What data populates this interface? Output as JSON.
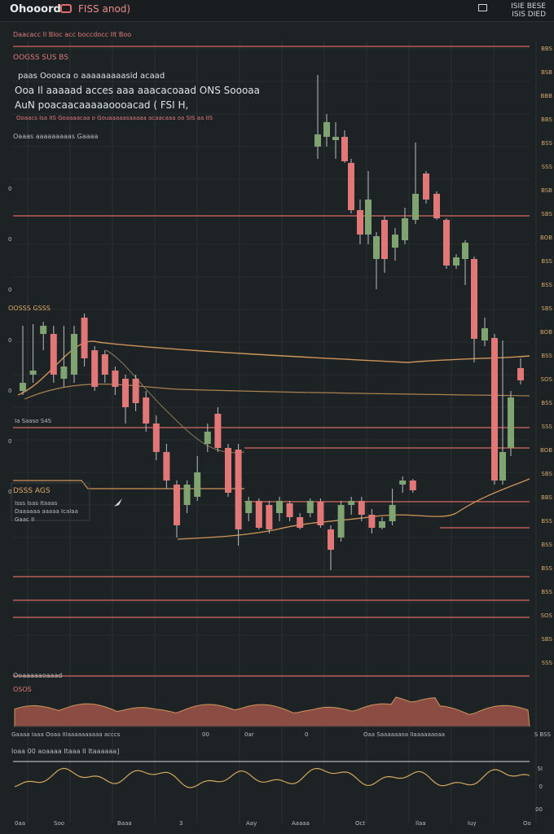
{
  "header": {
    "brand": "Ohooord",
    "pair": "FISS anod)",
    "right_line1": "ISIE BESE",
    "right_line2": "ISIS DIED"
  },
  "toolbar_text": "Daacacc  Il Bloc acc boccdocc Ilt Boo",
  "panel_title": "OOGSS SUS BS",
  "info": {
    "line1": "paas  Oooaca  o aaaaaaaaasid  acaad",
    "line2": "Ooa Il  aaaaad  acces  aaa aaacacoaad  ONS Soooaa",
    "line3": "AuN poacaacaaaaaoooacad ( FSI H,",
    "line4": "Ooaacs Isa IIS   Goaaaacaa o   Gouaaaaasaaaaa   acaacaaa  oa  SIS aa  IIS",
    "line5": "Oaaas aaaaaaaaas  Gaaaa"
  },
  "labels": {
    "ema_label": "OOSSS GSSS",
    "ema_sub": "Ia Saaso  S4S",
    "box_title": "DSSS AGS",
    "box_sub1": "Isss Isas  Itaaas",
    "box_sub2": "Daaaaaa  aaaaa IcaIaa",
    "box_sub3": "Gaac  II"
  },
  "y_axis": [
    "BBS",
    "BSB",
    "BBB",
    "BBS",
    "BSS",
    "SSS",
    "BSB",
    "SBS",
    "BOB",
    "BSS",
    "BSS",
    "SBS",
    "BOB",
    "BSS",
    "SOS",
    "BSS",
    "SSS",
    "BOB",
    "SBS",
    "BBS",
    "BSS",
    "BSS",
    "BSS",
    "BSS",
    "SOS",
    "SBS",
    "SSS"
  ],
  "left_axis": [
    "0",
    "0",
    "0",
    "0",
    "0",
    "0",
    "0"
  ],
  "volume_panel": {
    "title": "Ooaaaaaoaaad",
    "label": "OSOS",
    "axis": [
      "Gaaaa Iaaa  Ooaa  IIIaaaaaaaaaa acccs",
      "00",
      "0ar",
      "0",
      "Oaa Saaaaaaoa  IIaaaaaaoaa"
    ],
    "right": "S BSS"
  },
  "osc_panel": {
    "title": "Ioaa 00  aoaaaa Itaaa II Itaaaaaa]",
    "right_top": "SI",
    "right_mid": "0",
    "right_bot": "00"
  },
  "x_axis": [
    "0aa",
    "Soo",
    "Baaa",
    "3",
    "Aay",
    "Aaaaa",
    "Oct",
    "Ilaa",
    "Iuy",
    "Oo"
  ],
  "colors": {
    "up": "#7fa472",
    "down": "#e27777",
    "ema": "#d0955a",
    "level": "#d96a5f",
    "background": "#1d2224"
  },
  "chart_data": {
    "type": "candlestick",
    "ohlc": [
      [
        480,
        470,
        400,
        485,
        "up"
      ],
      [
        460,
        455,
        398,
        470,
        "up"
      ],
      [
        410,
        400,
        395,
        430,
        "up"
      ],
      [
        410,
        460,
        400,
        470,
        "down"
      ],
      [
        465,
        450,
        400,
        475,
        "up"
      ],
      [
        460,
        410,
        400,
        470,
        "up"
      ],
      [
        390,
        440,
        385,
        450,
        "down"
      ],
      [
        430,
        475,
        425,
        480,
        "down"
      ],
      [
        435,
        460,
        430,
        470,
        "down"
      ],
      [
        455,
        475,
        450,
        485,
        "down"
      ],
      [
        465,
        500,
        460,
        520,
        "down"
      ],
      [
        465,
        495,
        460,
        505,
        "down"
      ],
      [
        488,
        520,
        480,
        530,
        "down"
      ],
      [
        520,
        555,
        510,
        565,
        "down"
      ],
      [
        555,
        590,
        545,
        600,
        "down"
      ],
      [
        595,
        645,
        590,
        660,
        "down"
      ],
      [
        620,
        595,
        590,
        630,
        "up"
      ],
      [
        610,
        580,
        560,
        615,
        "up"
      ],
      [
        545,
        530,
        520,
        555,
        "up"
      ],
      [
        508,
        550,
        500,
        555,
        "down"
      ],
      [
        550,
        605,
        545,
        610,
        "down"
      ],
      [
        552,
        650,
        545,
        670,
        "down"
      ],
      [
        630,
        615,
        610,
        640,
        "up"
      ],
      [
        615,
        648,
        612,
        650,
        "down"
      ],
      [
        620,
        650,
        615,
        655,
        "down"
      ],
      [
        630,
        615,
        610,
        640,
        "up"
      ],
      [
        618,
        635,
        615,
        640,
        "down"
      ],
      [
        635,
        648,
        630,
        650,
        "down"
      ],
      [
        630,
        615,
        612,
        635,
        "up"
      ],
      [
        616,
        645,
        612,
        648,
        "down"
      ],
      [
        650,
        675,
        645,
        700,
        "down"
      ],
      [
        660,
        620,
        615,
        665,
        "up"
      ],
      [
        620,
        615,
        610,
        632,
        "up"
      ],
      [
        615,
        632,
        610,
        640,
        "down"
      ],
      [
        632,
        648,
        625,
        655,
        "down"
      ],
      [
        648,
        640,
        635,
        650,
        "up"
      ],
      [
        640,
        620,
        600,
        645,
        "up"
      ],
      [
        595,
        590,
        585,
        605,
        "up"
      ],
      [
        590,
        602,
        588,
        605,
        "down"
      ]
    ],
    "ema_series": [
      [
        480,
        470,
        460,
        448,
        440,
        436,
        440,
        447,
        455,
        462,
        470,
        478,
        487,
        495,
        505,
        517,
        530,
        540,
        548,
        556,
        566,
        580,
        595,
        612,
        625,
        635,
        642,
        648,
        652,
        655,
        657,
        658,
        658,
        657,
        655,
        650,
        645,
        640,
        635
      ]
    ]
  }
}
